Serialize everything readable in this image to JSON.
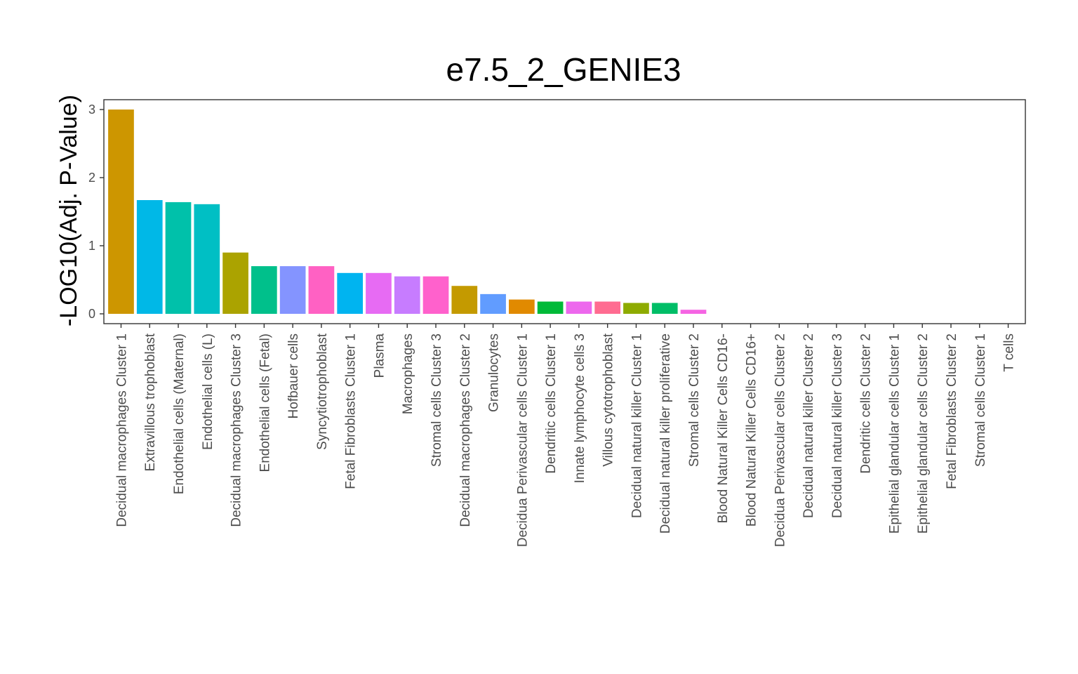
{
  "chart_data": {
    "type": "bar",
    "title": "e7.5_2_GENIE3",
    "xlabel": "",
    "ylabel": "-LOG10(Adj. P-Value)",
    "ylim": [
      0,
      3
    ],
    "yticks": [
      "0",
      "1",
      "2",
      "3"
    ],
    "grid": false,
    "legend": "none",
    "categories": [
      "Decidual macrophages Cluster 1",
      "Extravillous trophoblast",
      "Endothelial cells (Maternal)",
      "Endothelial cells (L)",
      "Decidual macrophages Cluster 3",
      "Endothelial cells (Fetal)",
      "Hofbauer cells",
      "Syncytiotrophoblast",
      "Fetal Fibroblasts Cluster 1",
      "Plasma",
      "Macrophages",
      "Stromal cells Cluster 3",
      "Decidual macrophages Cluster 2",
      "Granulocytes",
      "Decidua Perivascular cells Cluster 1",
      "Dendritic cells Cluster 1",
      "Innate lymphocyte cells 3",
      "Villous cytotrophoblast",
      "Decidual natural killer Cluster 1",
      "Decidual natural killer proliferative",
      "Stromal cells Cluster 2",
      "Blood Natural Killer Cells CD16-",
      "Blood Natural Killer Cells CD16+",
      "Decidua Perivascular cells Cluster 2",
      "Decidual natural killer Cluster 2",
      "Decidual natural killer Cluster 3",
      "Dendritic cells Cluster 2",
      "Epithelial glandular cells Cluster 1",
      "Epithelial glandular cells Cluster 2",
      "Fetal Fibroblasts Cluster 2",
      "Stromal cells Cluster 1",
      "T cells"
    ],
    "values": [
      3.0,
      1.67,
      1.64,
      1.61,
      0.9,
      0.7,
      0.7,
      0.7,
      0.6,
      0.6,
      0.55,
      0.55,
      0.41,
      0.29,
      0.21,
      0.18,
      0.18,
      0.18,
      0.16,
      0.16,
      0.06,
      0,
      0,
      0,
      0,
      0,
      0,
      0,
      0,
      0,
      0,
      0
    ],
    "colors": [
      "#CD9600",
      "#00B8E7",
      "#00C1AA",
      "#00BFC4",
      "#ABA300",
      "#00C08B",
      "#8494FF",
      "#FF61C3",
      "#00B4F0",
      "#E76BF3",
      "#C77CFF",
      "#FF61CC",
      "#C49A00",
      "#619CFF",
      "#E18A00",
      "#00BA38",
      "#ED68ED",
      "#FF6C91",
      "#8EAB00",
      "#00BE67",
      "#F564E3",
      "#F8766D",
      "#F8766D",
      "#F8766D",
      "#F8766D",
      "#F8766D",
      "#F8766D",
      "#F8766D",
      "#F8766D",
      "#F8766D",
      "#F8766D",
      "#F8766D"
    ]
  }
}
